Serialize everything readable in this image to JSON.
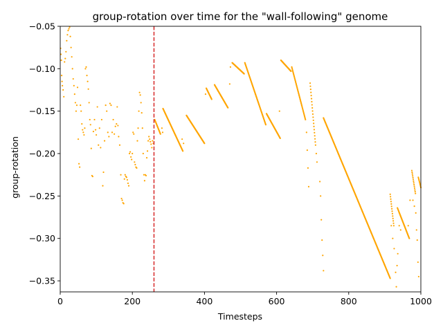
{
  "chart_data": {
    "type": "scatter",
    "title": "group-rotation over time for the \"wall-following\" genome",
    "xlabel": "Timesteps",
    "ylabel": "group-rotation",
    "xlim": [
      0,
      1000
    ],
    "ylim": [
      -0.363,
      -0.05
    ],
    "xticks": [
      0,
      200,
      400,
      600,
      800,
      1000
    ],
    "yticks": [
      -0.35,
      -0.3,
      -0.25,
      -0.2,
      -0.15,
      -0.1,
      -0.05
    ],
    "xtick_labels": [
      "0",
      "200",
      "400",
      "600",
      "800",
      "1000"
    ],
    "ytick_labels": [
      "−0.35",
      "−0.30",
      "−0.25",
      "−0.20",
      "−0.15",
      "−0.10",
      "−0.05"
    ],
    "grid": false,
    "marker_color": "#FFA500",
    "vline": {
      "x": 260,
      "color": "#D62728",
      "style": "dashed"
    },
    "segments": [
      [
        262,
        -0.16,
        278,
        -0.177
      ],
      [
        285,
        -0.147,
        340,
        -0.197
      ],
      [
        350,
        -0.155,
        400,
        -0.188
      ],
      [
        405,
        -0.123,
        420,
        -0.136
      ],
      [
        428,
        -0.119,
        465,
        -0.146
      ],
      [
        477,
        -0.093,
        510,
        -0.106
      ],
      [
        512,
        -0.093,
        570,
        -0.166
      ],
      [
        572,
        -0.153,
        610,
        -0.182
      ],
      [
        612,
        -0.09,
        640,
        -0.103
      ],
      [
        642,
        -0.098,
        680,
        -0.16
      ],
      [
        693,
        -0.117,
        708,
        -0.19
      ],
      [
        730,
        -0.158,
        915,
        -0.347
      ],
      [
        915,
        -0.248,
        925,
        -0.285
      ],
      [
        935,
        -0.264,
        968,
        -0.3
      ],
      [
        975,
        -0.22,
        985,
        -0.247
      ],
      [
        993,
        -0.228,
        1000,
        -0.24
      ]
    ],
    "points": [
      [
        1,
        -0.076
      ],
      [
        2,
        -0.083
      ],
      [
        3,
        -0.09
      ],
      [
        4,
        -0.108
      ],
      [
        5,
        -0.115
      ],
      [
        6,
        -0.12
      ],
      [
        8,
        -0.125
      ],
      [
        10,
        -0.133
      ],
      [
        12,
        -0.092
      ],
      [
        14,
        -0.088
      ],
      [
        16,
        -0.08
      ],
      [
        18,
        -0.067
      ],
      [
        20,
        -0.06
      ],
      [
        22,
        -0.055
      ],
      [
        24,
        -0.053
      ],
      [
        26,
        -0.051
      ],
      [
        28,
        -0.062
      ],
      [
        30,
        -0.075
      ],
      [
        32,
        -0.086
      ],
      [
        34,
        -0.1
      ],
      [
        36,
        -0.112
      ],
      [
        38,
        -0.12
      ],
      [
        40,
        -0.13
      ],
      [
        42,
        -0.14
      ],
      [
        44,
        -0.15
      ],
      [
        46,
        -0.143
      ],
      [
        48,
        -0.122
      ],
      [
        50,
        -0.183
      ],
      [
        52,
        -0.212
      ],
      [
        54,
        -0.216
      ],
      [
        56,
        -0.143
      ],
      [
        58,
        -0.15
      ],
      [
        60,
        -0.165
      ],
      [
        62,
        -0.172
      ],
      [
        64,
        -0.175
      ],
      [
        66,
        -0.178
      ],
      [
        68,
        -0.17
      ],
      [
        70,
        -0.1
      ],
      [
        72,
        -0.098
      ],
      [
        74,
        -0.108
      ],
      [
        76,
        -0.115
      ],
      [
        78,
        -0.124
      ],
      [
        80,
        -0.14
      ],
      [
        82,
        -0.16
      ],
      [
        84,
        -0.166
      ],
      [
        86,
        -0.194
      ],
      [
        88,
        -0.226
      ],
      [
        90,
        -0.227
      ],
      [
        92,
        -0.174
      ],
      [
        95,
        -0.16
      ],
      [
        98,
        -0.172
      ],
      [
        100,
        -0.178
      ],
      [
        103,
        -0.145
      ],
      [
        106,
        -0.19
      ],
      [
        109,
        -0.17
      ],
      [
        112,
        -0.193
      ],
      [
        115,
        -0.16
      ],
      [
        118,
        -0.238
      ],
      [
        120,
        -0.222
      ],
      [
        123,
        -0.185
      ],
      [
        126,
        -0.143
      ],
      [
        129,
        -0.15
      ],
      [
        132,
        -0.175
      ],
      [
        135,
        -0.18
      ],
      [
        138,
        -0.141
      ],
      [
        141,
        -0.143
      ],
      [
        144,
        -0.175
      ],
      [
        147,
        -0.16
      ],
      [
        150,
        -0.177
      ],
      [
        153,
        -0.168
      ],
      [
        156,
        -0.165
      ],
      [
        158,
        -0.145
      ],
      [
        160,
        -0.167
      ],
      [
        162,
        -0.18
      ],
      [
        165,
        -0.19
      ],
      [
        168,
        -0.225
      ],
      [
        170,
        -0.253
      ],
      [
        172,
        -0.255
      ],
      [
        174,
        -0.258
      ],
      [
        176,
        -0.259
      ],
      [
        178,
        -0.23
      ],
      [
        180,
        -0.225
      ],
      [
        182,
        -0.227
      ],
      [
        184,
        -0.228
      ],
      [
        186,
        -0.231
      ],
      [
        188,
        -0.235
      ],
      [
        190,
        -0.238
      ],
      [
        192,
        -0.2
      ],
      [
        194,
        -0.198
      ],
      [
        196,
        -0.204
      ],
      [
        198,
        -0.207
      ],
      [
        200,
        -0.2
      ],
      [
        202,
        -0.175
      ],
      [
        204,
        -0.177
      ],
      [
        206,
        -0.21
      ],
      [
        208,
        -0.213
      ],
      [
        210,
        -0.216
      ],
      [
        212,
        -0.217
      ],
      [
        214,
        -0.185
      ],
      [
        216,
        -0.17
      ],
      [
        218,
        -0.15
      ],
      [
        220,
        -0.128
      ],
      [
        222,
        -0.131
      ],
      [
        224,
        -0.14
      ],
      [
        226,
        -0.152
      ],
      [
        228,
        -0.17
      ],
      [
        230,
        -0.2
      ],
      [
        232,
        -0.225
      ],
      [
        234,
        -0.232
      ],
      [
        236,
        -0.225
      ],
      [
        238,
        -0.226
      ],
      [
        240,
        -0.205
      ],
      [
        242,
        -0.197
      ],
      [
        244,
        -0.185
      ],
      [
        246,
        -0.18
      ],
      [
        248,
        -0.183
      ],
      [
        250,
        -0.186
      ],
      [
        252,
        -0.189
      ],
      [
        254,
        -0.193
      ],
      [
        256,
        -0.185
      ],
      [
        258,
        -0.188
      ],
      [
        282,
        -0.17
      ],
      [
        284,
        -0.175
      ],
      [
        338,
        -0.183
      ],
      [
        342,
        -0.188
      ],
      [
        403,
        -0.13
      ],
      [
        470,
        -0.118
      ],
      [
        472,
        -0.098
      ],
      [
        608,
        -0.15
      ],
      [
        683,
        -0.175
      ],
      [
        685,
        -0.196
      ],
      [
        687,
        -0.217
      ],
      [
        689,
        -0.239
      ],
      [
        710,
        -0.2
      ],
      [
        712,
        -0.21
      ],
      [
        720,
        -0.233
      ],
      [
        722,
        -0.25
      ],
      [
        724,
        -0.278
      ],
      [
        726,
        -0.302
      ],
      [
        728,
        -0.32
      ],
      [
        730,
        -0.338
      ],
      [
        918,
        -0.285
      ],
      [
        922,
        -0.3
      ],
      [
        926,
        -0.312
      ],
      [
        930,
        -0.34
      ],
      [
        932,
        -0.357
      ],
      [
        934,
        -0.332
      ],
      [
        936,
        -0.318
      ],
      [
        940,
        -0.285
      ],
      [
        944,
        -0.29
      ],
      [
        965,
        -0.285
      ],
      [
        970,
        -0.255
      ],
      [
        978,
        -0.255
      ],
      [
        982,
        -0.262
      ],
      [
        986,
        -0.27
      ],
      [
        988,
        -0.29
      ],
      [
        990,
        -0.302
      ],
      [
        992,
        -0.328
      ],
      [
        994,
        -0.345
      ]
    ]
  }
}
